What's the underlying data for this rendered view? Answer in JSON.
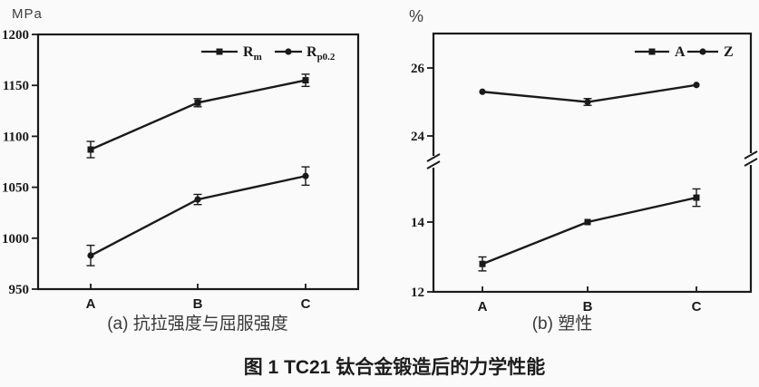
{
  "page": {
    "background": "#fafafa"
  },
  "colors": {
    "ink": "#1a1a1a",
    "caption_text": "#3a3a3a"
  },
  "figure_caption": "图 1  TC21 钛合金锻造后的力学性能",
  "chart_data": [
    {
      "type": "line",
      "id": "strength",
      "unit_label": "MPa",
      "caption": "(a) 抗拉强度与屈服强度",
      "categories": [
        "A",
        "B",
        "C"
      ],
      "ylim": [
        950,
        1200
      ],
      "y_ticks": [
        950,
        1000,
        1050,
        1100,
        1150,
        1200
      ],
      "grid": false,
      "legend_position": "top-right-inside",
      "error_bars": true,
      "series": [
        {
          "name": "Rm",
          "label_base": "R",
          "label_sub": "m",
          "marker": "square",
          "values": [
            1087,
            1133,
            1155
          ],
          "errors": [
            8,
            4,
            6
          ]
        },
        {
          "name": "Rp0.2",
          "label_base": "R",
          "label_sub": "p0.2",
          "marker": "circle",
          "values": [
            983,
            1038,
            1061
          ],
          "errors": [
            10,
            5,
            9
          ]
        }
      ]
    },
    {
      "type": "line",
      "id": "plasticity",
      "unit_label": "%",
      "caption": "(b) 塑性",
      "categories": [
        "A",
        "B",
        "C"
      ],
      "axis_break": true,
      "upper_axis": {
        "ticks": [
          24,
          26
        ],
        "range_shown": [
          23.2,
          27.6
        ]
      },
      "lower_axis": {
        "ticks": [
          12,
          14
        ],
        "range_shown": [
          12,
          15.7
        ]
      },
      "grid": false,
      "legend_position": "top-right-inside",
      "error_bars": true,
      "series": [
        {
          "name": "A",
          "label_base": "A",
          "label_sub": "",
          "marker": "square",
          "segment": "lower",
          "values": [
            12.8,
            14.0,
            14.7
          ],
          "errors": [
            0.2,
            0,
            0.25
          ]
        },
        {
          "name": "Z",
          "label_base": "Z",
          "label_sub": "",
          "marker": "circle",
          "segment": "upper",
          "values": [
            25.3,
            25.0,
            25.5
          ],
          "errors": [
            0,
            0.1,
            0
          ]
        }
      ]
    }
  ]
}
